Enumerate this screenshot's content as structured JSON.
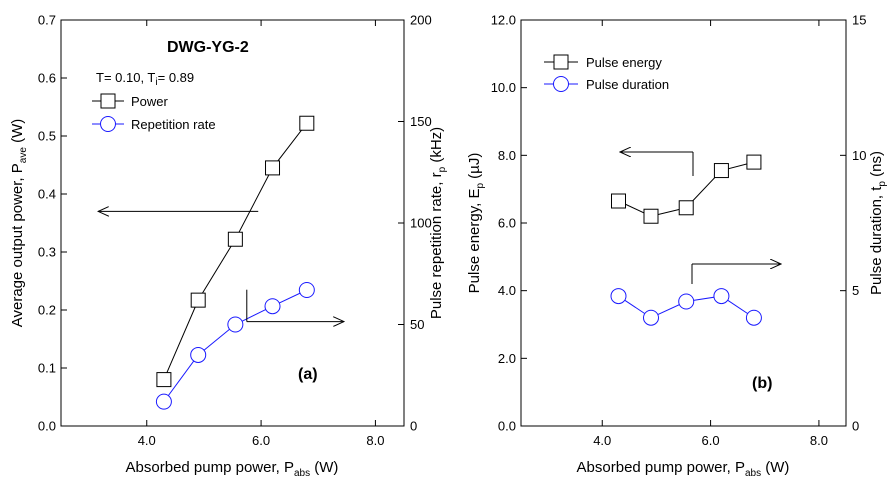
{
  "chart_data": [
    {
      "type": "line",
      "panel_label": "(a)",
      "title": "DWG-YG-2",
      "annotation": {
        "prefix": "T= 0.10, T",
        "sub": "i",
        "suffix": "= 0.89"
      },
      "x_label": {
        "main": "Absorbed pump power, P",
        "sub": "abs",
        "unit": " (W)"
      },
      "y_left_label": {
        "main": "Average output power, P",
        "sub": "ave",
        "unit": " (W)"
      },
      "y_right_label": {
        "main": "Pulse repetition rate, r",
        "sub": "p",
        "unit": " (kHz)"
      },
      "xlim": [
        2.5,
        8.5
      ],
      "xticks": [
        "4.0",
        "6.0",
        "8.0"
      ],
      "xtick_values": [
        4,
        6,
        8
      ],
      "ylim_left": [
        0,
        0.7
      ],
      "yticks_left": [
        "0.0",
        "0.1",
        "0.2",
        "0.3",
        "0.4",
        "0.5",
        "0.6",
        "0.7"
      ],
      "ylim_right": [
        0,
        200
      ],
      "yticks_right": [
        "0",
        "50",
        "100",
        "150",
        "200"
      ],
      "x": [
        4.3,
        4.9,
        5.55,
        6.2,
        6.8
      ],
      "series": [
        {
          "name": "Power",
          "axis": "left",
          "marker": "square",
          "color": "#000000",
          "values": [
            0.08,
            0.217,
            0.322,
            0.445,
            0.522
          ]
        },
        {
          "name": "Repetition rate",
          "axis": "right",
          "marker": "circle",
          "color": "#1a1aff",
          "values": [
            12,
            35,
            50,
            59,
            67
          ]
        }
      ],
      "arrows": [
        {
          "from": [
            5.95,
            0.37
          ],
          "to": [
            3.15,
            0.37
          ],
          "axis": "left"
        },
        {
          "from": [
            5.75,
            0.235
          ],
          "to": [
            5.75,
            0.18
          ],
          "corner_x": 7.45,
          "axis": "left"
        }
      ]
    },
    {
      "type": "line",
      "panel_label": "(b)",
      "x_label": {
        "main": "Absorbed pump power, P",
        "sub": "abs",
        "unit": " (W)"
      },
      "y_left_label": {
        "main": "Pulse energy, E",
        "sub": "p",
        "unit": " (µJ)"
      },
      "y_right_label": {
        "main": "Pulse duration, t",
        "sub": "p",
        "unit": " (ns)"
      },
      "xlim": [
        2.5,
        8.5
      ],
      "xticks": [
        "4.0",
        "6.0",
        "8.0"
      ],
      "xtick_values": [
        4,
        6,
        8
      ],
      "ylim_left": [
        0,
        12
      ],
      "yticks_left": [
        "0.0",
        "2.0",
        "4.0",
        "6.0",
        "8.0",
        "10.0",
        "12.0"
      ],
      "ylim_right": [
        0,
        15
      ],
      "yticks_right": [
        "0",
        "5",
        "10",
        "15"
      ],
      "x": [
        4.3,
        4.9,
        5.55,
        6.2,
        6.8
      ],
      "series": [
        {
          "name": "Pulse energy",
          "axis": "left",
          "marker": "square",
          "color": "#000000",
          "values": [
            6.65,
            6.2,
            6.45,
            7.55,
            7.8
          ]
        },
        {
          "name": "Pulse duration",
          "axis": "right",
          "marker": "circle",
          "color": "#1a1aff",
          "values": [
            4.8,
            4.0,
            4.6,
            4.8,
            4.0
          ]
        }
      ]
    }
  ]
}
